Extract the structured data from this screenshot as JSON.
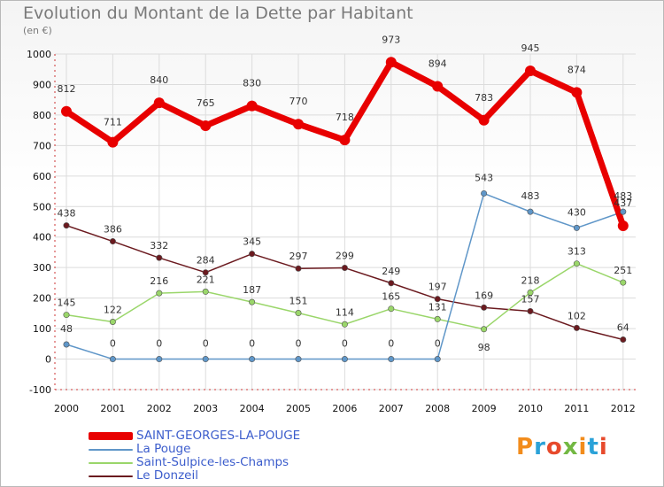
{
  "chart_data": {
    "type": "line",
    "title": "Evolution du Montant de la Dette par Habitant",
    "subtitle": "(en €)",
    "x": [
      "2000",
      "2001",
      "2002",
      "2003",
      "2004",
      "2005",
      "2006",
      "2007",
      "2008",
      "2009",
      "2010",
      "2011",
      "2012"
    ],
    "ylim": [
      -100,
      1000
    ],
    "yticks": [
      "-100",
      "0",
      "100",
      "200",
      "300",
      "400",
      "500",
      "600",
      "700",
      "800",
      "900",
      "1000"
    ],
    "grid": true,
    "legend_position": "bottom-left",
    "series": [
      {
        "name": "SAINT-GEORGES-LA-POUGE",
        "color": "#e80000",
        "values": [
          812,
          711,
          840,
          765,
          830,
          770,
          718,
          973,
          894,
          783,
          945,
          874,
          437
        ]
      },
      {
        "name": "La Pouge",
        "color": "#5f96c8",
        "values": [
          48,
          0,
          0,
          0,
          0,
          0,
          0,
          0,
          0,
          543,
          483,
          430,
          483
        ]
      },
      {
        "name": "Saint-Sulpice-les-Champs",
        "color": "#9ad66a",
        "values": [
          145,
          122,
          216,
          221,
          187,
          151,
          114,
          165,
          131,
          98,
          218,
          313,
          251
        ]
      },
      {
        "name": "Le Donzeil",
        "color": "#6b1a1f",
        "values": [
          438,
          386,
          332,
          284,
          345,
          297,
          299,
          249,
          197,
          169,
          157,
          102,
          64
        ]
      }
    ]
  },
  "labels": {
    "s0": [
      "812",
      "711",
      "840",
      "765",
      "830",
      "770",
      "718",
      "973",
      "894",
      "783",
      "945",
      "874",
      "437"
    ],
    "s1": [
      "48",
      "0",
      "0",
      "0",
      "0",
      "0",
      "0",
      "0",
      "0",
      "543",
      "483",
      "430",
      "483"
    ],
    "s2": [
      "145",
      "122",
      "216",
      "221",
      "187",
      "151",
      "114",
      "165",
      "131",
      "98",
      "218",
      "313",
      "251"
    ],
    "s3": [
      "438",
      "386",
      "332",
      "284",
      "345",
      "297",
      "299",
      "249",
      "197",
      "169",
      "157",
      "102",
      "64"
    ]
  },
  "logo": {
    "text": "Proxiti",
    "colors": [
      "#f28c1c",
      "#2ba2d8",
      "#e74a2c",
      "#73b843",
      "#f28c1c",
      "#2ba2d8",
      "#e74a2c"
    ]
  }
}
